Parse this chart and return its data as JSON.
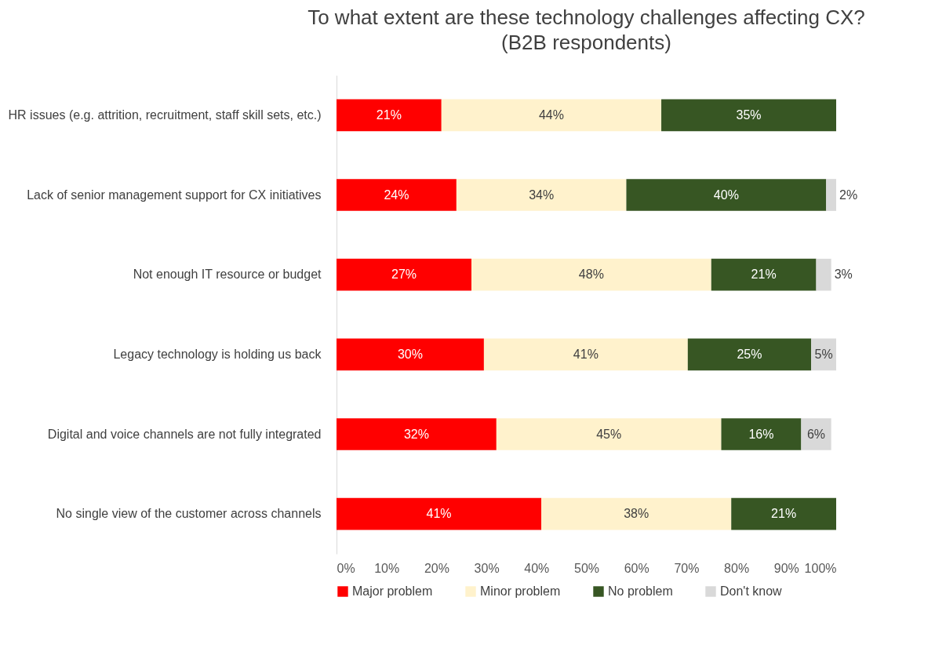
{
  "chart_data": {
    "type": "bar",
    "orientation": "horizontal",
    "stacked": true,
    "title": "To what extent are these technology challenges affecting CX?",
    "subtitle": "(B2B respondents)",
    "categories": [
      "HR issues (e.g. attrition, recruitment, staff skill sets, etc.)",
      "Lack of senior management support for CX initiatives",
      "Not enough IT resource or budget",
      "Legacy technology is holding us back",
      "Digital and voice channels are not fully integrated",
      "No single view of the customer across channels"
    ],
    "series": [
      {
        "name": "Major problem",
        "color": "#ff0000",
        "values": [
          21,
          24,
          27,
          29.5,
          32,
          41
        ],
        "value_labels": [
          "21%",
          "24%",
          "27%",
          "30%",
          "32%",
          "41%"
        ]
      },
      {
        "name": "Minor problem",
        "color": "#fff2cc",
        "values": [
          44,
          34,
          48,
          40.8,
          45,
          38
        ],
        "value_labels": [
          "44%",
          "34%",
          "48%",
          "41%",
          "45%",
          "38%"
        ]
      },
      {
        "name": "No problem",
        "color": "#375623",
        "values": [
          35,
          40,
          21,
          24.7,
          16,
          21
        ],
        "value_labels": [
          "35%",
          "40%",
          "21%",
          "25%",
          "16%",
          "21%"
        ]
      },
      {
        "name": "Don't know",
        "color": "#d9d9d9",
        "values": [
          null,
          2,
          3,
          5,
          6,
          null
        ],
        "value_labels": [
          null,
          "2%",
          "3%",
          "5%",
          "6%",
          null
        ]
      }
    ],
    "xlim": [
      0,
      100
    ],
    "xticks": [
      {
        "value": 0,
        "label": "0%"
      },
      {
        "value": 10,
        "label": "10%"
      },
      {
        "value": 20,
        "label": "20%"
      },
      {
        "value": 30,
        "label": "30%"
      },
      {
        "value": 40,
        "label": "40%"
      },
      {
        "value": 50,
        "label": "50%"
      },
      {
        "value": 60,
        "label": "60%"
      },
      {
        "value": 70,
        "label": "70%"
      },
      {
        "value": 80,
        "label": "80%"
      },
      {
        "value": 90,
        "label": "90%"
      },
      {
        "value": 100,
        "label": "100%"
      }
    ],
    "grid": false,
    "legend": "bottom"
  }
}
